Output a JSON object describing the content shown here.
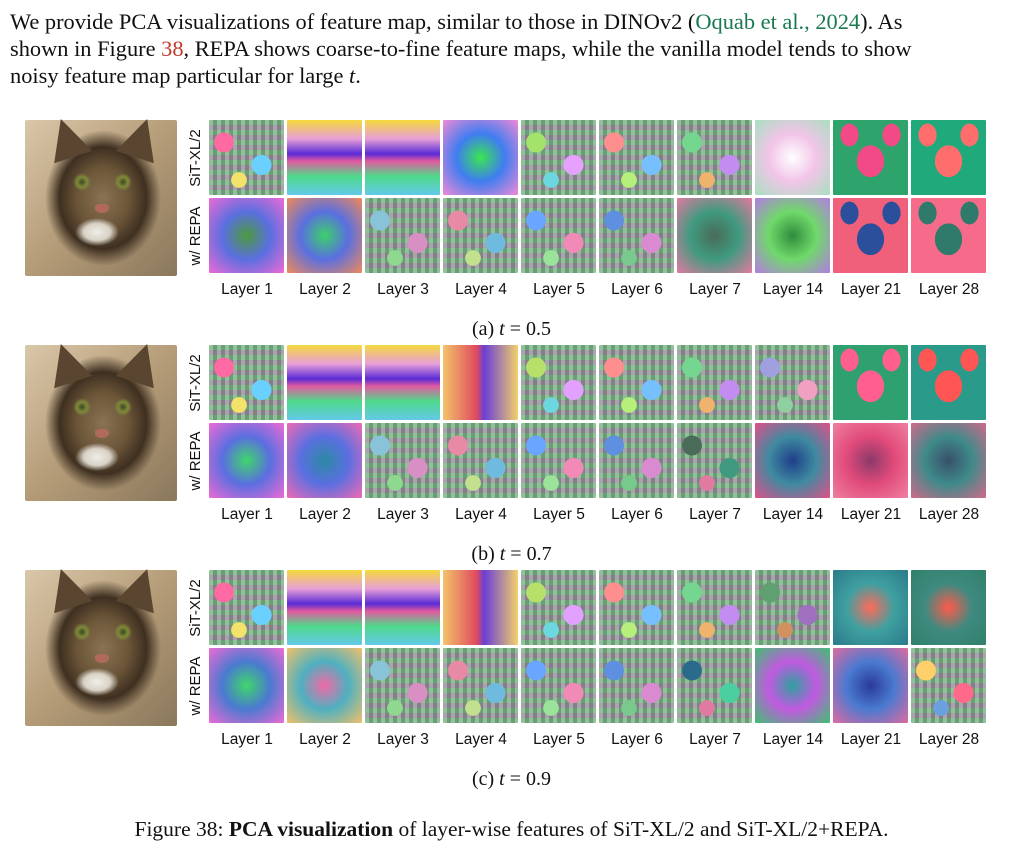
{
  "paragraph": {
    "line1_a": "We provide PCA visualizations of feature map, similar to those in DINOv2 (",
    "line1_link": "Oquab et al., 2024",
    "line1_b": ").  As",
    "line2_a": "shown in Figure ",
    "line2_ref": "38",
    "line2_b": ", REPA shows coarse-to-fine feature maps, while the vanilla model tends to show",
    "line3_a": "noisy feature map particular for large ",
    "line3_var": "t",
    "line3_b": "."
  },
  "row_labels": {
    "top": "SiT-XL/2",
    "bottom": "w/ REPA"
  },
  "layers": [
    "Layer 1",
    "Layer 2",
    "Layer 3",
    "Layer 4",
    "Layer 5",
    "Layer 6",
    "Layer 7",
    "Layer 14",
    "Layer 21",
    "Layer 28"
  ],
  "panels": [
    {
      "caption_prefix": "(a) ",
      "caption_var": "t",
      "caption_value": " = 0.5"
    },
    {
      "caption_prefix": "(b) ",
      "caption_var": "t",
      "caption_value": " = 0.7"
    },
    {
      "caption_prefix": "(c) ",
      "caption_var": "t",
      "caption_value": " = 0.9"
    }
  ],
  "figure_caption": {
    "prefix": "Figure 38: ",
    "bold": "PCA visualization",
    "rest": " of layer-wise features of SiT-XL/2 and SiT-XL/2+REPA."
  }
}
